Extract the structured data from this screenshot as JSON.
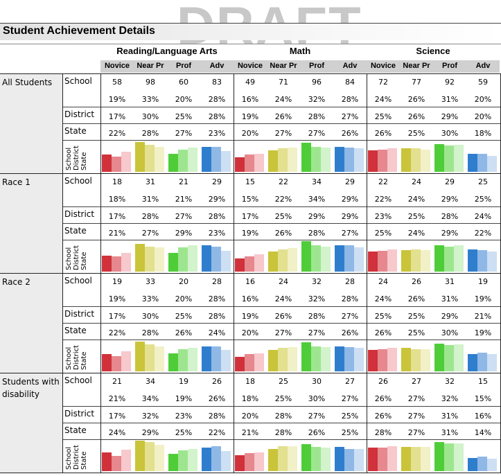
{
  "watermark": "DRAFT",
  "title": "Student Achievement Details",
  "subjects": [
    "Reading/Language Arts",
    "Math",
    "Science"
  ],
  "levels": [
    "Novice",
    "Near Pr",
    "Prof",
    "Adv"
  ],
  "row_labels": {
    "school": "School",
    "district": "District",
    "state": "State"
  },
  "legend": [
    "School",
    "District",
    "State"
  ],
  "colors": {
    "novice": [
      "#d0313a",
      "#e6888e",
      "#f7c8cc"
    ],
    "near_pr": [
      "#c9c43a",
      "#e3e08f",
      "#f2f0c7"
    ],
    "prof": [
      "#4fcd38",
      "#9de68f",
      "#d2f3cb"
    ],
    "adv": [
      "#2f7ecd",
      "#8fb8e6",
      "#cddff3"
    ]
  },
  "groups": [
    {
      "name": "All Students",
      "counts": [
        "58",
        "98",
        "60",
        "83",
        "49",
        "71",
        "96",
        "84",
        "72",
        "77",
        "92",
        "59"
      ],
      "school": [
        "19%",
        "33%",
        "20%",
        "28%",
        "16%",
        "24%",
        "32%",
        "28%",
        "24%",
        "26%",
        "31%",
        "20%"
      ],
      "district": [
        "17%",
        "30%",
        "25%",
        "28%",
        "19%",
        "26%",
        "28%",
        "27%",
        "25%",
        "26%",
        "29%",
        "20%"
      ],
      "state": [
        "22%",
        "28%",
        "27%",
        "23%",
        "20%",
        "27%",
        "27%",
        "26%",
        "26%",
        "25%",
        "30%",
        "18%"
      ]
    },
    {
      "name": "Race 1",
      "counts": [
        "18",
        "31",
        "21",
        "29",
        "15",
        "22",
        "34",
        "29",
        "22",
        "24",
        "29",
        "25"
      ],
      "school": [
        "18%",
        "31%",
        "21%",
        "29%",
        "15%",
        "22%",
        "34%",
        "29%",
        "22%",
        "24%",
        "29%",
        "25%"
      ],
      "district": [
        "17%",
        "28%",
        "27%",
        "28%",
        "17%",
        "25%",
        "29%",
        "29%",
        "23%",
        "25%",
        "28%",
        "24%"
      ],
      "state": [
        "21%",
        "27%",
        "29%",
        "23%",
        "19%",
        "26%",
        "28%",
        "27%",
        "25%",
        "24%",
        "29%",
        "22%"
      ]
    },
    {
      "name": "Race 2",
      "counts": [
        "19",
        "33",
        "20",
        "28",
        "16",
        "24",
        "32",
        "28",
        "24",
        "26",
        "31",
        "19"
      ],
      "school": [
        "19%",
        "33%",
        "20%",
        "28%",
        "16%",
        "24%",
        "32%",
        "28%",
        "24%",
        "26%",
        "31%",
        "19%"
      ],
      "district": [
        "17%",
        "30%",
        "25%",
        "28%",
        "19%",
        "26%",
        "28%",
        "27%",
        "25%",
        "25%",
        "29%",
        "21%"
      ],
      "state": [
        "22%",
        "28%",
        "26%",
        "24%",
        "20%",
        "27%",
        "27%",
        "26%",
        "26%",
        "25%",
        "30%",
        "19%"
      ]
    },
    {
      "name": "Students with disability",
      "counts": [
        "21",
        "34",
        "19",
        "26",
        "18",
        "25",
        "30",
        "27",
        "26",
        "27",
        "32",
        "15"
      ],
      "school": [
        "21%",
        "34%",
        "19%",
        "26%",
        "18%",
        "25%",
        "30%",
        "27%",
        "26%",
        "27%",
        "32%",
        "15%"
      ],
      "district": [
        "17%",
        "32%",
        "23%",
        "28%",
        "20%",
        "28%",
        "27%",
        "25%",
        "26%",
        "27%",
        "31%",
        "16%"
      ],
      "state": [
        "24%",
        "29%",
        "25%",
        "22%",
        "21%",
        "28%",
        "26%",
        "25%",
        "28%",
        "27%",
        "31%",
        "14%"
      ]
    }
  ]
}
